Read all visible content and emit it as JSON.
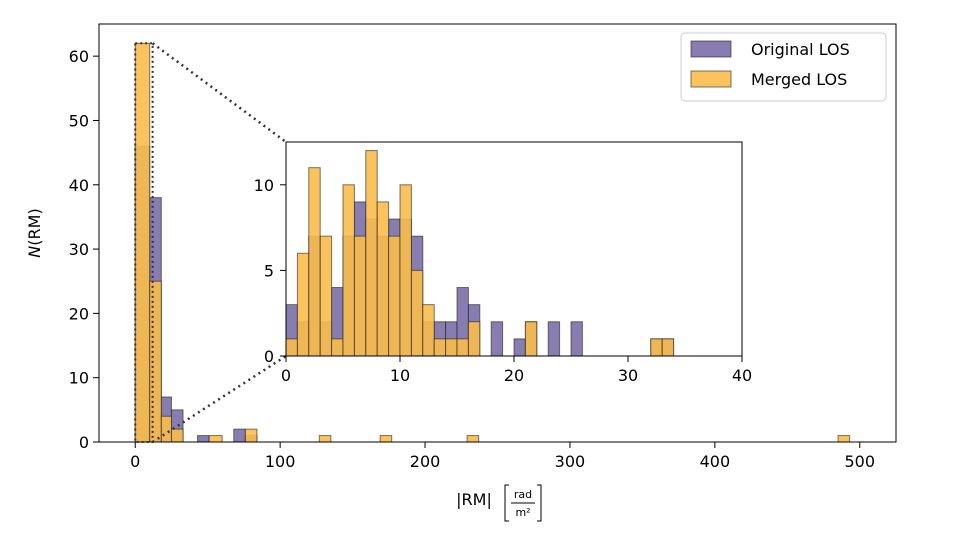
{
  "chart_data": [
    {
      "type": "bar",
      "subtype": "histogram",
      "xlim": [
        -25,
        525
      ],
      "ylim": [
        0,
        65
      ],
      "x_ticks": [
        0,
        100,
        200,
        300,
        400,
        500
      ],
      "y_ticks": [
        0,
        10,
        20,
        30,
        40,
        50,
        60
      ],
      "xlabel": {
        "main": "|RM|",
        "frac_num": "rad",
        "frac_den": "m²"
      },
      "ylabel": {
        "italic": "N",
        "rest": "(RM)"
      },
      "legend": {
        "placement": "top-right"
      },
      "series": [
        {
          "name": "Original LOS",
          "color": "#7b6fa8",
          "bins": [
            {
              "x0": 0,
              "x1": 10,
              "y": 46
            },
            {
              "x0": 10,
              "x1": 18,
              "y": 38
            },
            {
              "x0": 18,
              "x1": 25,
              "y": 7
            },
            {
              "x0": 25,
              "x1": 33,
              "y": 5
            },
            {
              "x0": 43,
              "x1": 51,
              "y": 1
            },
            {
              "x0": 68,
              "x1": 76,
              "y": 2
            },
            {
              "x0": 76,
              "x1": 84,
              "y": 1
            }
          ]
        },
        {
          "name": "Merged LOS",
          "color": "#fbbc4c",
          "bins": [
            {
              "x0": 0,
              "x1": 10,
              "y": 62
            },
            {
              "x0": 10,
              "x1": 18,
              "y": 25
            },
            {
              "x0": 18,
              "x1": 25,
              "y": 4
            },
            {
              "x0": 25,
              "x1": 33,
              "y": 2
            },
            {
              "x0": 51,
              "x1": 60,
              "y": 1
            },
            {
              "x0": 76,
              "x1": 84,
              "y": 2
            },
            {
              "x0": 127,
              "x1": 135,
              "y": 1
            },
            {
              "x0": 169,
              "x1": 177,
              "y": 1
            },
            {
              "x0": 229,
              "x1": 237,
              "y": 1
            },
            {
              "x0": 485,
              "x1": 493,
              "y": 1
            }
          ]
        }
      ]
    },
    {
      "type": "bar",
      "subtype": "histogram-inset",
      "xlim": [
        0,
        40
      ],
      "ylim": [
        0,
        12.5
      ],
      "bin_width": 1,
      "x_ticks": [
        0,
        10,
        20,
        30,
        40
      ],
      "y_ticks": [
        0,
        5,
        10
      ],
      "series": [
        {
          "name": "Original LOS",
          "color": "#7b6fa8",
          "bins_start": 0,
          "values": [
            3,
            2,
            7,
            2,
            4,
            7,
            9,
            8,
            7,
            8,
            8,
            7,
            2,
            2,
            2,
            4,
            3,
            0,
            2,
            0,
            1,
            2,
            0,
            2,
            0,
            2,
            0,
            0,
            0,
            0,
            0,
            0,
            1,
            1,
            0,
            0,
            0,
            0,
            0,
            0
          ]
        },
        {
          "name": "Merged LOS",
          "color": "#fbbc4c",
          "bins_start": 0,
          "values": [
            1,
            6,
            11,
            7,
            1,
            10,
            7,
            12,
            9,
            7,
            10,
            5,
            3,
            1,
            1,
            1,
            2,
            0,
            0,
            0,
            0,
            2,
            0,
            0,
            0,
            0,
            0,
            0,
            0,
            0,
            0,
            0,
            1,
            1,
            0,
            0,
            0,
            0,
            0,
            0
          ]
        }
      ]
    }
  ]
}
